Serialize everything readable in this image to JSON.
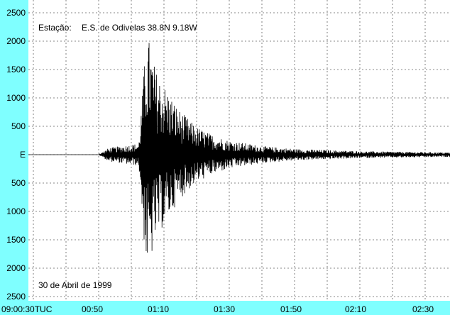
{
  "chart_data": {
    "type": "line",
    "title": "",
    "station_label": "Estação:",
    "station_name": "E.S. de Odivelas 38.8N 9.18W",
    "date_label": "30 de Abril de 1999",
    "xlabel": "",
    "ylabel": "",
    "x_ticks": [
      "09:00:30TUC",
      "00:50",
      "01:10",
      "01:30",
      "01:50",
      "02:10",
      "02:30"
    ],
    "y_ticks": [
      "2500",
      "2000",
      "1500",
      "1000",
      "500",
      "E",
      "500",
      "1000",
      "1500",
      "2000",
      "2500"
    ],
    "ylim": [
      -2500,
      2500
    ],
    "grid": true,
    "series": [
      {
        "trace": "seismogram",
        "envelope": [
          {
            "t": 0,
            "amp": 0
          },
          {
            "t": 21,
            "amp": 0
          },
          {
            "t": 24,
            "amp": 120
          },
          {
            "t": 33,
            "amp": 200
          },
          {
            "t": 35,
            "amp": 1900
          },
          {
            "t": 36,
            "amp": 2050
          },
          {
            "t": 38,
            "amp": 1500
          },
          {
            "t": 41,
            "amp": 1200
          },
          {
            "t": 45,
            "amp": 800
          },
          {
            "t": 50,
            "amp": 500
          },
          {
            "t": 55,
            "amp": 350
          },
          {
            "t": 60,
            "amp": 250
          },
          {
            "t": 70,
            "amp": 150
          },
          {
            "t": 80,
            "amp": 100
          },
          {
            "t": 100,
            "amp": 60
          },
          {
            "t": 126,
            "amp": 40
          }
        ]
      }
    ],
    "colors": {
      "background": "#ffffff",
      "frame": "#7fffff",
      "trace": "#000000",
      "grid": "#606060"
    }
  }
}
